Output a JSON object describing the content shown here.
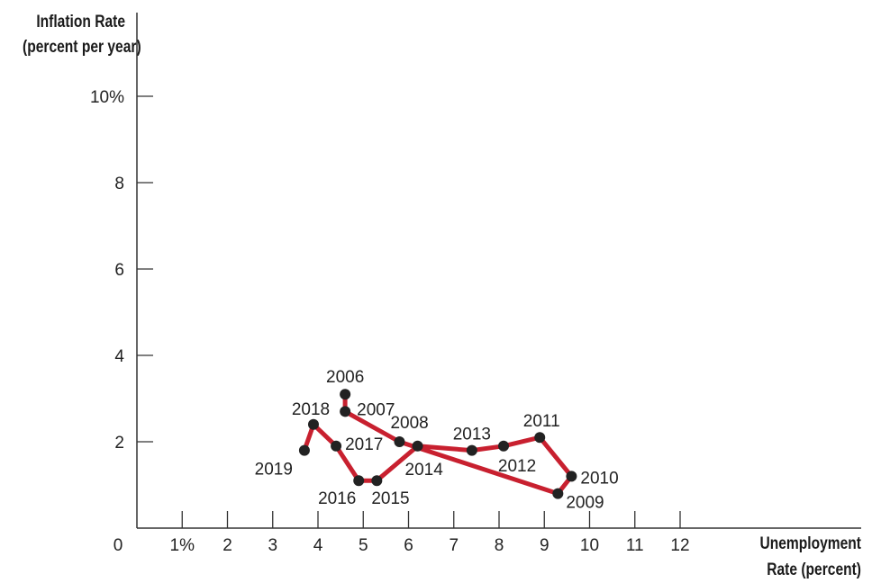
{
  "chart_data": {
    "type": "line",
    "ylabel_line1": "Inflation Rate",
    "ylabel_line2": "(percent per year)",
    "xlabel_line1": "Unemployment",
    "xlabel_line2": "Rate (percent)",
    "xlim": [
      0,
      16
    ],
    "ylim": [
      0,
      10
    ],
    "x_ticks": [
      1,
      2,
      3,
      4,
      5,
      6,
      7,
      8,
      9,
      10,
      11,
      12
    ],
    "x_tick_labels": [
      "1%",
      "2",
      "3",
      "4",
      "5",
      "6",
      "7",
      "8",
      "9",
      "10",
      "11",
      "12"
    ],
    "y_ticks": [
      2,
      4,
      6,
      8,
      10
    ],
    "y_tick_labels": [
      "2",
      "4",
      "6",
      "8",
      "10%"
    ],
    "origin_label": "0",
    "line_color": "#c8202f",
    "point_color": "#222222",
    "points": [
      {
        "year": "2006",
        "x": 4.6,
        "y": 3.1
      },
      {
        "year": "2007",
        "x": 4.6,
        "y": 2.7
      },
      {
        "year": "2008",
        "x": 5.8,
        "y": 2.0
      },
      {
        "year": "2009",
        "x": 9.3,
        "y": 0.8
      },
      {
        "year": "2010",
        "x": 9.6,
        "y": 1.2
      },
      {
        "year": "2011",
        "x": 8.9,
        "y": 2.1
      },
      {
        "year": "2012",
        "x": 8.1,
        "y": 1.9
      },
      {
        "year": "2013",
        "x": 7.4,
        "y": 1.8
      },
      {
        "year": "2014",
        "x": 6.2,
        "y": 1.9
      },
      {
        "year": "2015",
        "x": 5.3,
        "y": 1.1
      },
      {
        "year": "2016",
        "x": 4.9,
        "y": 1.1
      },
      {
        "year": "2017",
        "x": 4.4,
        "y": 1.9
      },
      {
        "year": "2018",
        "x": 3.9,
        "y": 2.4
      },
      {
        "year": "2019",
        "x": 3.7,
        "y": 1.8
      }
    ]
  }
}
